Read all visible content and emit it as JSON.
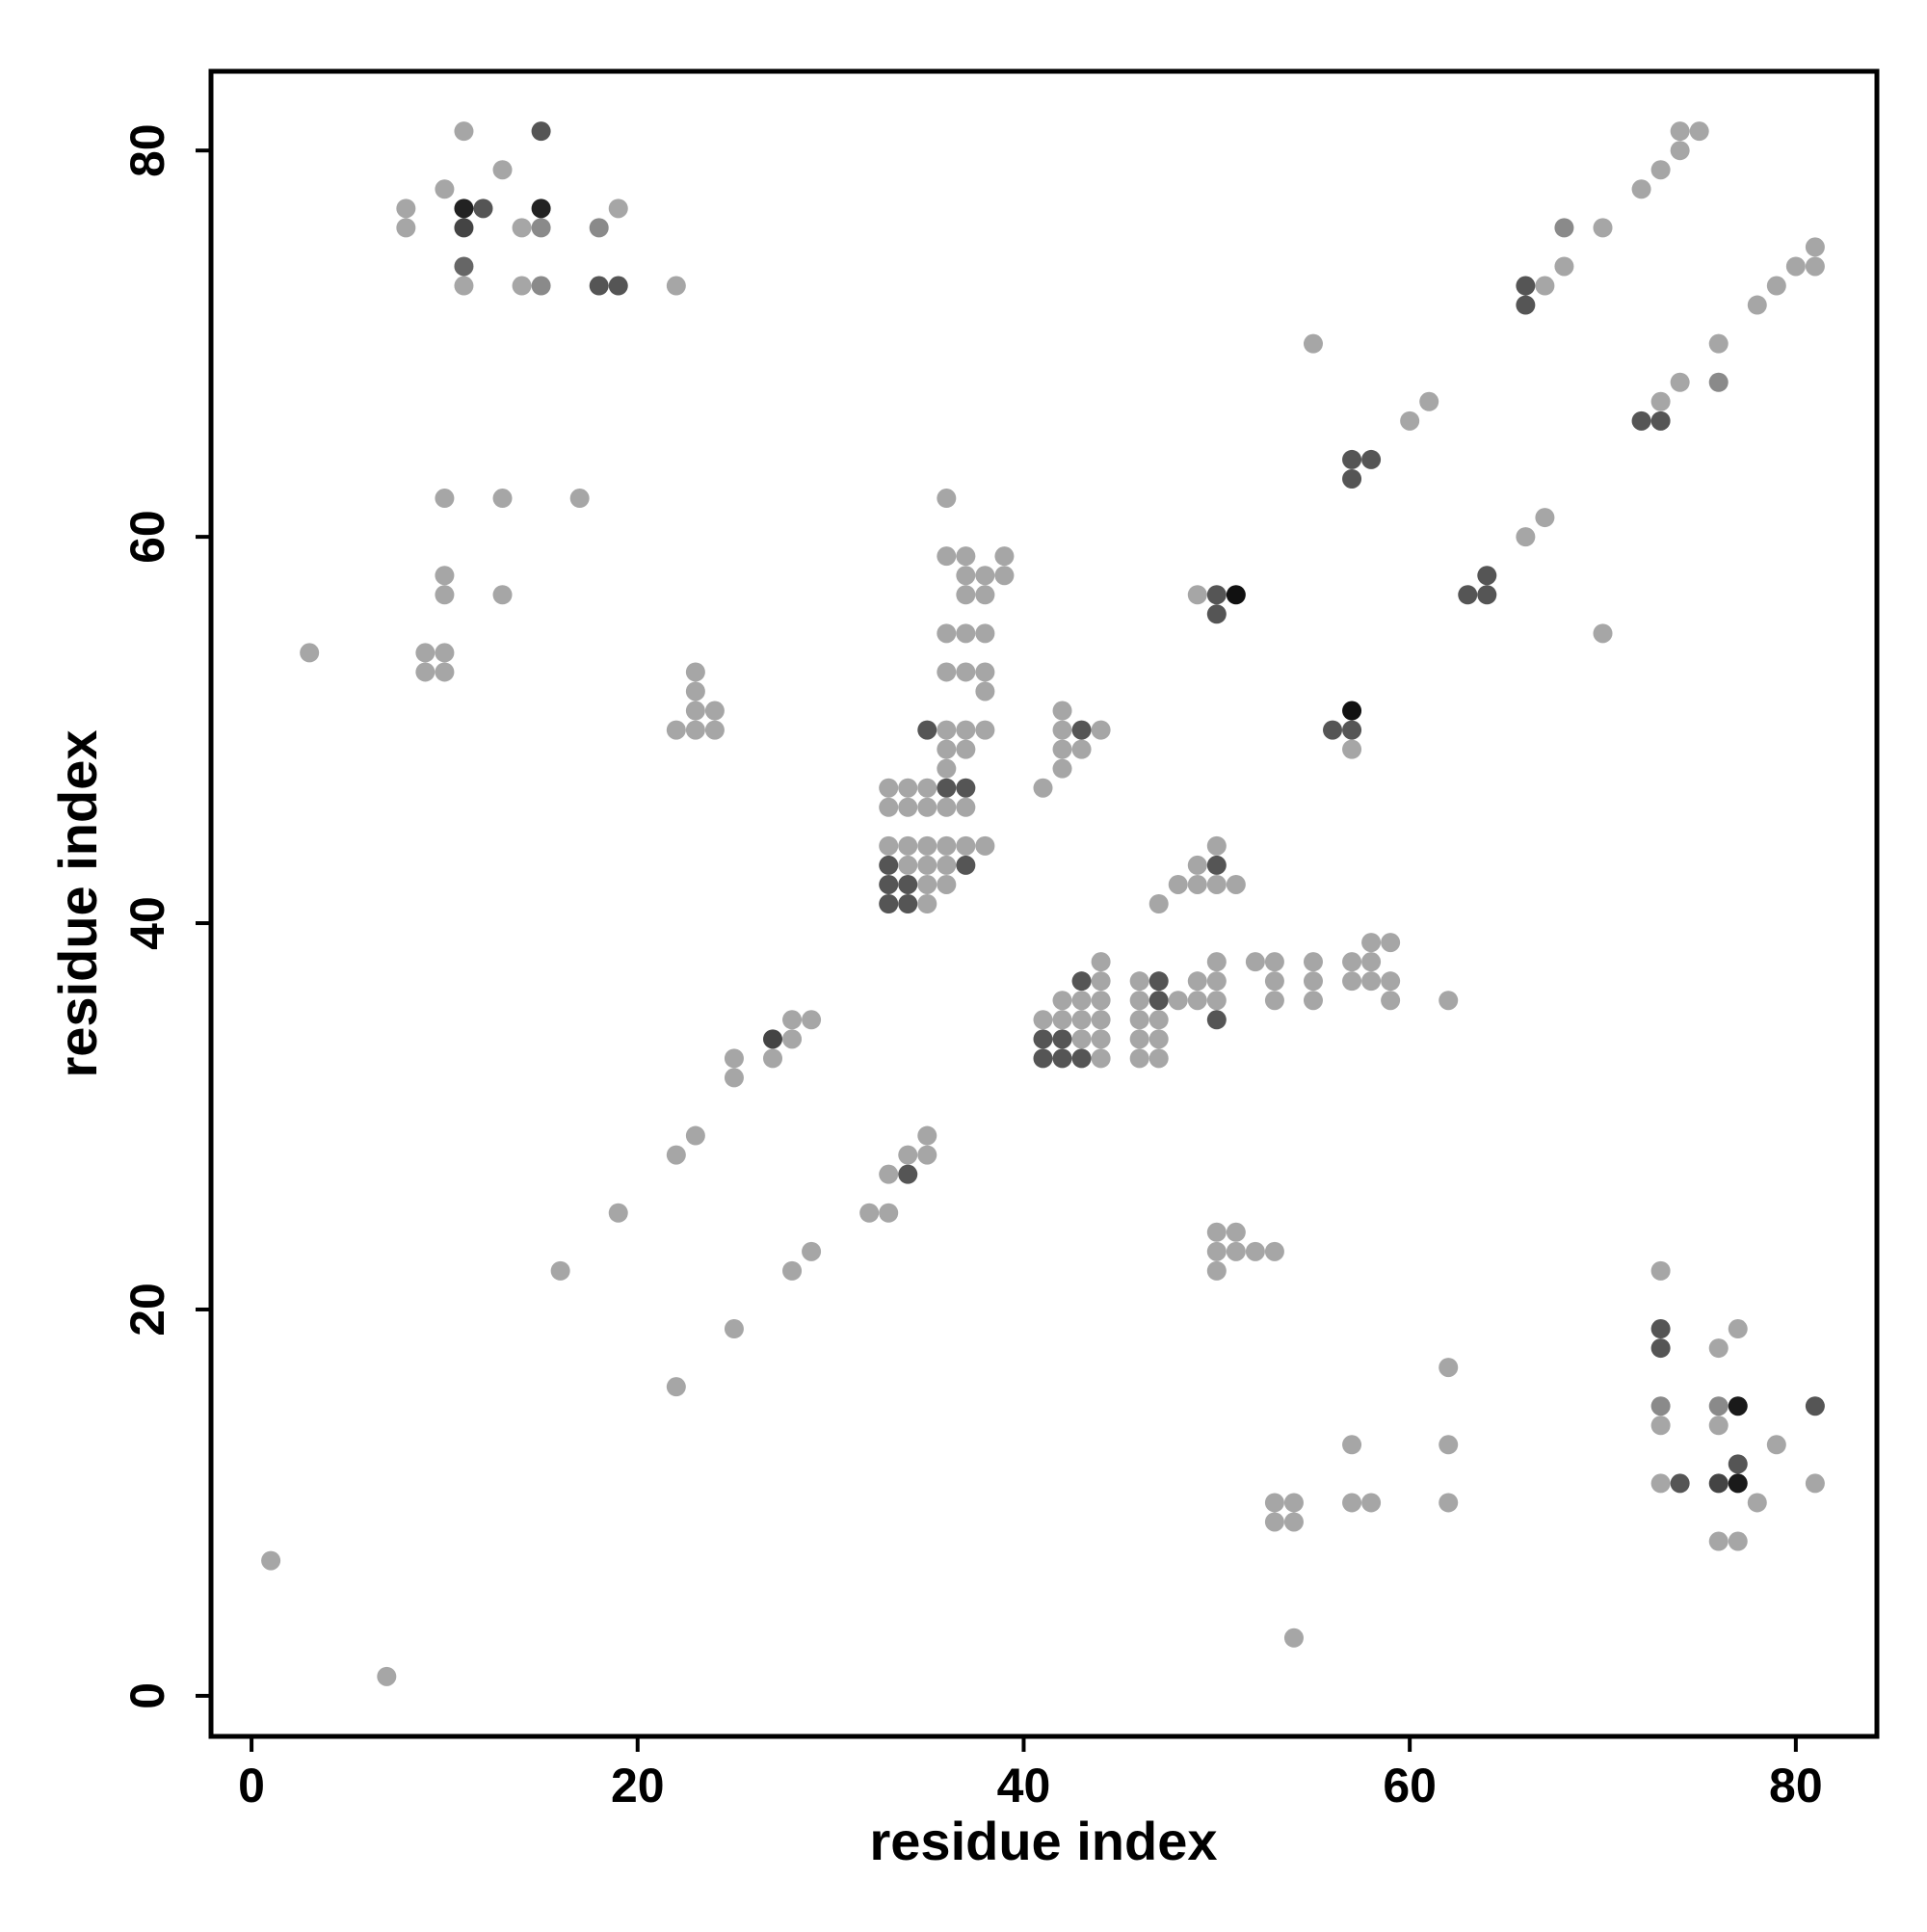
{
  "chart_data": {
    "type": "scatter",
    "x_label": "residue index",
    "y_label": "residue index",
    "xlim": [
      -2.1,
      84.2
    ],
    "ylim": [
      -2.1,
      84.1
    ],
    "xticks": [
      0,
      20,
      40,
      60,
      80
    ],
    "yticks": [
      0,
      20,
      40,
      60,
      80
    ],
    "x": [
      11,
      15,
      8,
      8,
      10,
      11,
      11,
      12,
      13,
      14,
      15,
      15,
      11,
      11,
      14,
      15,
      18,
      19,
      18,
      19,
      22,
      10,
      13,
      17,
      10,
      10,
      13,
      3,
      9,
      10,
      9,
      10,
      23,
      23,
      23,
      24,
      22,
      23,
      24,
      1,
      7,
      16,
      19,
      22,
      23,
      22,
      25,
      25,
      25,
      27,
      27,
      28,
      28,
      29,
      28,
      29,
      32,
      33,
      33,
      34,
      34,
      35,
      35,
      33,
      34,
      35,
      36,
      37,
      33,
      34,
      35,
      36,
      37,
      36,
      36,
      37,
      35,
      36,
      37,
      38,
      33,
      34,
      35,
      36,
      37,
      38,
      33,
      34,
      35,
      36,
      37,
      33,
      34,
      35,
      36,
      33,
      34,
      35,
      36,
      36,
      37,
      39,
      37,
      38,
      39,
      37,
      38,
      36,
      37,
      38,
      36,
      37,
      38,
      38,
      41,
      42,
      42,
      43,
      42,
      43,
      44,
      42,
      44,
      43,
      44,
      46,
      47,
      42,
      43,
      44,
      46,
      47,
      41,
      42,
      43,
      44,
      46,
      47,
      41,
      42,
      43,
      44,
      46,
      47,
      41,
      42,
      43,
      44,
      46,
      47,
      48,
      49,
      49,
      50,
      50,
      50,
      50,
      47,
      48,
      49,
      50,
      51,
      49,
      50,
      50,
      52,
      53,
      53,
      53,
      55,
      55,
      55,
      57,
      58,
      58,
      59,
      57,
      58,
      59,
      59,
      62,
      49,
      50,
      51,
      50,
      56,
      57,
      57,
      57,
      57,
      58,
      57,
      55,
      60,
      61,
      63,
      64,
      64,
      66,
      67,
      70,
      66,
      66,
      67,
      68,
      68,
      70,
      72,
      73,
      74,
      74,
      75,
      72,
      73,
      73,
      74,
      76,
      76,
      78,
      79,
      80,
      81,
      81,
      50,
      51,
      50,
      51,
      52,
      53,
      50,
      53,
      54,
      53,
      54,
      54,
      57,
      57,
      58,
      62,
      62,
      62,
      73,
      73,
      73,
      73,
      73,
      76,
      77,
      76,
      77,
      76,
      81,
      77,
      79,
      73,
      74,
      76,
      77,
      81,
      78,
      76,
      77
    ],
    "y": [
      81,
      81,
      77,
      76,
      78,
      77,
      76,
      77,
      79,
      76,
      77,
      76,
      74,
      73,
      73,
      73,
      76,
      77,
      73,
      73,
      73,
      62,
      62,
      62,
      58,
      57,
      57,
      54,
      54,
      54,
      53,
      53,
      53,
      52,
      51,
      51,
      50,
      50,
      50,
      7,
      1,
      22,
      25,
      28,
      29,
      16,
      19,
      33,
      32,
      34,
      33,
      35,
      34,
      35,
      22,
      23,
      25,
      25,
      27,
      27,
      28,
      28,
      29,
      47,
      47,
      47,
      47,
      47,
      46,
      46,
      46,
      46,
      46,
      48,
      49,
      49,
      50,
      50,
      50,
      50,
      44,
      44,
      44,
      44,
      44,
      44,
      43,
      43,
      43,
      43,
      43,
      42,
      42,
      42,
      42,
      41,
      41,
      41,
      62,
      59,
      59,
      59,
      58,
      58,
      58,
      57,
      57,
      55,
      55,
      55,
      53,
      53,
      53,
      52,
      47,
      48,
      49,
      49,
      50,
      50,
      50,
      51,
      38,
      37,
      37,
      37,
      37,
      36,
      36,
      36,
      36,
      36,
      35,
      35,
      35,
      35,
      35,
      35,
      34,
      34,
      34,
      34,
      34,
      34,
      33,
      33,
      33,
      33,
      33,
      33,
      36,
      36,
      37,
      37,
      38,
      36,
      35,
      41,
      42,
      42,
      42,
      42,
      43,
      43,
      44,
      38,
      38,
      37,
      36,
      38,
      37,
      36,
      38,
      38,
      39,
      39,
      37,
      37,
      37,
      36,
      36,
      57,
      57,
      57,
      56,
      50,
      50,
      51,
      49,
      64,
      64,
      63,
      70,
      66,
      67,
      57,
      57,
      58,
      60,
      61,
      55,
      73,
      72,
      73,
      74,
      76,
      76,
      78,
      79,
      80,
      81,
      81,
      66,
      66,
      67,
      68,
      68,
      70,
      72,
      73,
      74,
      74,
      75,
      24,
      24,
      23,
      23,
      23,
      23,
      22,
      10,
      10,
      9,
      9,
      3,
      13,
      10,
      10,
      17,
      13,
      10,
      22,
      19,
      18,
      15,
      14,
      18,
      19,
      15,
      15,
      14,
      15,
      12,
      13,
      11,
      11,
      11,
      11,
      11,
      10,
      8,
      8
    ],
    "colors": [
      "#a6a6a6",
      "#555555",
      "#a6a6a6",
      "#a6a6a6",
      "#a6a6a6",
      "#222222",
      "#444444",
      "#555555",
      "#a6a6a6",
      "#a6a6a6",
      "#222222",
      "#8a8a8a",
      "#666666",
      "#a6a6a6",
      "#a6a6a6",
      "#8a8a8a",
      "#8a8a8a",
      "#a6a6a6",
      "#555555",
      "#555555",
      "#a6a6a6",
      "#a6a6a6",
      "#a6a6a6",
      "#a6a6a6",
      "#a6a6a6",
      "#a6a6a6",
      "#a6a6a6",
      "#a6a6a6",
      "#a6a6a6",
      "#a6a6a6",
      "#a6a6a6",
      "#a6a6a6",
      "#a6a6a6",
      "#a6a6a6",
      "#a6a6a6",
      "#a6a6a6",
      "#a6a6a6",
      "#a6a6a6",
      "#a6a6a6",
      "#a6a6a6",
      "#a6a6a6",
      "#a6a6a6",
      "#a6a6a6",
      "#a6a6a6",
      "#a6a6a6",
      "#a6a6a6",
      "#a6a6a6",
      "#a6a6a6",
      "#a6a6a6",
      "#444444",
      "#a6a6a6",
      "#a6a6a6",
      "#a6a6a6",
      "#a6a6a6",
      "#a6a6a6",
      "#a6a6a6",
      "#a6a6a6",
      "#a6a6a6",
      "#a6a6a6",
      "#555555",
      "#a6a6a6",
      "#a6a6a6",
      "#a6a6a6",
      "#a6a6a6",
      "#a6a6a6",
      "#a6a6a6",
      "#555555",
      "#555555",
      "#a6a6a6",
      "#a6a6a6",
      "#a6a6a6",
      "#a6a6a6",
      "#a6a6a6",
      "#a6a6a6",
      "#a6a6a6",
      "#a6a6a6",
      "#555555",
      "#a6a6a6",
      "#a6a6a6",
      "#a6a6a6",
      "#a6a6a6",
      "#a6a6a6",
      "#a6a6a6",
      "#a6a6a6",
      "#a6a6a6",
      "#a6a6a6",
      "#555555",
      "#a6a6a6",
      "#a6a6a6",
      "#a6a6a6",
      "#555555",
      "#555555",
      "#555555",
      "#a6a6a6",
      "#a6a6a6",
      "#555555",
      "#555555",
      "#a6a6a6",
      "#a6a6a6",
      "#a6a6a6",
      "#a6a6a6",
      "#a6a6a6",
      "#a6a6a6",
      "#a6a6a6",
      "#a6a6a6",
      "#a6a6a6",
      "#a6a6a6",
      "#a6a6a6",
      "#a6a6a6",
      "#a6a6a6",
      "#a6a6a6",
      "#a6a6a6",
      "#a6a6a6",
      "#a6a6a6",
      "#a6a6a6",
      "#a6a6a6",
      "#a6a6a6",
      "#a6a6a6",
      "#a6a6a6",
      "#555555",
      "#a6a6a6",
      "#a6a6a6",
      "#a6a6a6",
      "#555555",
      "#a6a6a6",
      "#a6a6a6",
      "#555555",
      "#a6a6a6",
      "#a6a6a6",
      "#a6a6a6",
      "#a6a6a6",
      "#555555",
      "#a6a6a6",
      "#a6a6a6",
      "#a6a6a6",
      "#a6a6a6",
      "#a6a6a6",
      "#a6a6a6",
      "#555555",
      "#555555",
      "#a6a6a6",
      "#a6a6a6",
      "#a6a6a6",
      "#a6a6a6",
      "#555555",
      "#555555",
      "#555555",
      "#a6a6a6",
      "#a6a6a6",
      "#a6a6a6",
      "#a6a6a6",
      "#a6a6a6",
      "#a6a6a6",
      "#a6a6a6",
      "#a6a6a6",
      "#a6a6a6",
      "#555555",
      "#a6a6a6",
      "#a6a6a6",
      "#a6a6a6",
      "#a6a6a6",
      "#a6a6a6",
      "#a6a6a6",
      "#555555",
      "#a6a6a6",
      "#a6a6a6",
      "#a6a6a6",
      "#a6a6a6",
      "#a6a6a6",
      "#a6a6a6",
      "#a6a6a6",
      "#a6a6a6",
      "#a6a6a6",
      "#a6a6a6",
      "#a6a6a6",
      "#a6a6a6",
      "#a6a6a6",
      "#a6a6a6",
      "#a6a6a6",
      "#a6a6a6",
      "#a6a6a6",
      "#a6a6a6",
      "#555555",
      "#111111",
      "#555555",
      "#555555",
      "#555555",
      "#111111",
      "#a6a6a6",
      "#555555",
      "#555555",
      "#555555",
      "#a6a6a6",
      "#a6a6a6",
      "#a6a6a6",
      "#555555",
      "#555555",
      "#555555",
      "#a6a6a6",
      "#a6a6a6",
      "#a6a6a6",
      "#555555",
      "#555555",
      "#a6a6a6",
      "#a6a6a6",
      "#8a8a8a",
      "#a6a6a6",
      "#a6a6a6",
      "#a6a6a6",
      "#a6a6a6",
      "#a6a6a6",
      "#a6a6a6",
      "#555555",
      "#555555",
      "#a6a6a6",
      "#a6a6a6",
      "#8a8a8a",
      "#a6a6a6",
      "#a6a6a6",
      "#a6a6a6",
      "#a6a6a6",
      "#a6a6a6",
      "#a6a6a6",
      "#a6a6a6",
      "#a6a6a6",
      "#a6a6a6",
      "#a6a6a6",
      "#a6a6a6",
      "#a6a6a6",
      "#a6a6a6",
      "#a6a6a6",
      "#a6a6a6",
      "#a6a6a6",
      "#a6a6a6",
      "#a6a6a6",
      "#a6a6a6",
      "#a6a6a6",
      "#a6a6a6",
      "#a6a6a6",
      "#a6a6a6",
      "#a6a6a6",
      "#a6a6a6",
      "#555555",
      "#555555",
      "#8a8a8a",
      "#a6a6a6",
      "#a6a6a6",
      "#a6a6a6",
      "#8a8a8a",
      "#1a1a1a",
      "#a6a6a6",
      "#555555",
      "#555555",
      "#a6a6a6",
      "#a6a6a6",
      "#555555",
      "#444444",
      "#1a1a1a",
      "#a6a6a6",
      "#a6a6a6",
      "#a6a6a6",
      "#a6a6a6"
    ]
  }
}
